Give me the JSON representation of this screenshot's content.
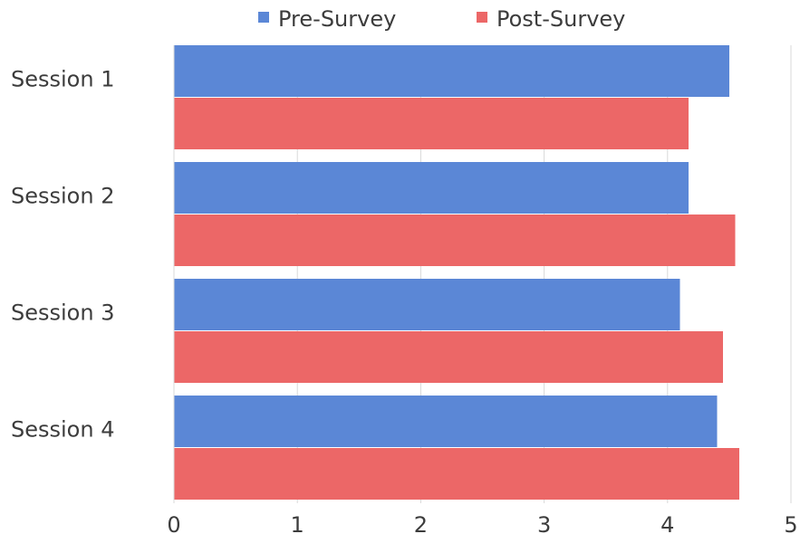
{
  "chart_data": {
    "type": "bar",
    "orientation": "horizontal",
    "title": "",
    "xlabel": "",
    "ylabel": "",
    "categories": [
      "Session 1",
      "Session 2",
      "Session 3",
      "Session 4"
    ],
    "series": [
      {
        "name": "Pre-Survey",
        "color": "#5b87d6",
        "values": [
          4.5,
          4.17,
          4.1,
          4.4
        ]
      },
      {
        "name": "Post-Survey",
        "color": "#ec6767",
        "values": [
          4.17,
          4.55,
          4.45,
          4.58
        ]
      }
    ],
    "xlim": [
      0,
      5
    ],
    "xticks": [
      0,
      1,
      2,
      3,
      4,
      5
    ],
    "grid": "vertical",
    "legend_position": "top-center"
  }
}
